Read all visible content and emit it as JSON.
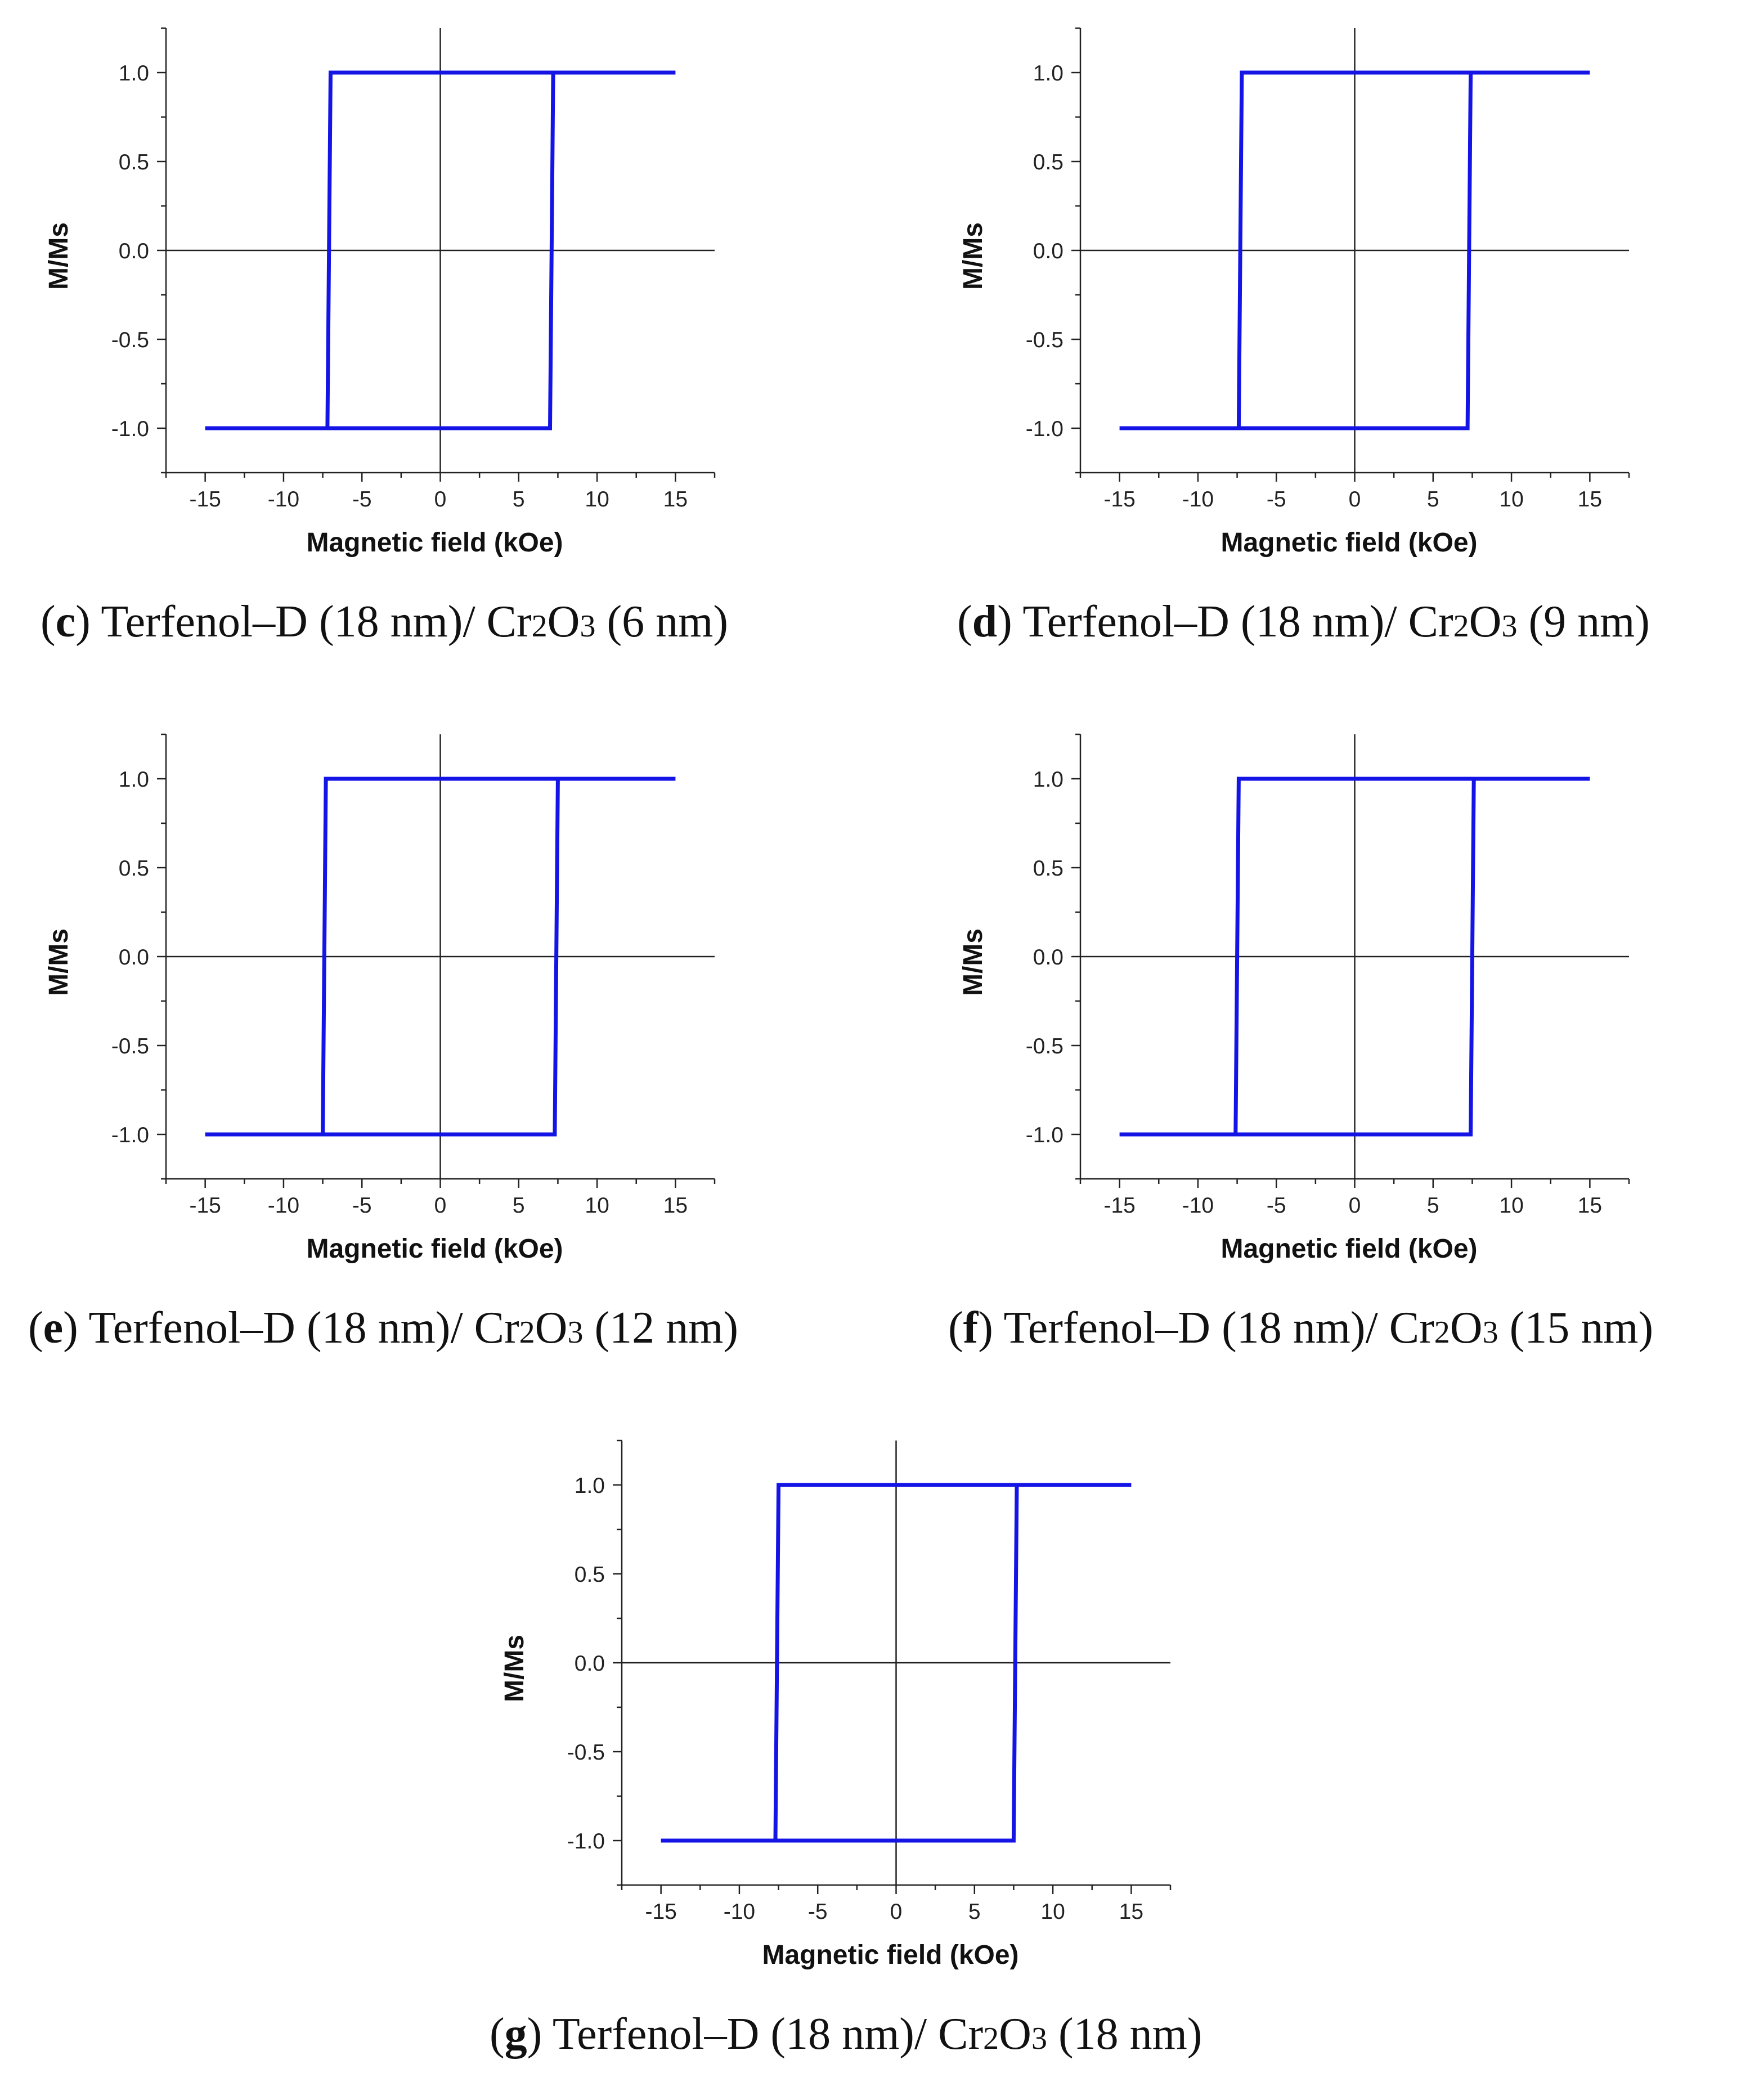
{
  "chart_data": [
    {
      "type": "line",
      "panel_letter": "c",
      "caption": {
        "prefix": "Terfenol–D (18 nm)/ ",
        "cr": "Cr",
        "sub1": "2",
        "o": "O",
        "sub2": "3",
        "suffix": " (6 nm)"
      },
      "xlabel": "Magnetic field (kOe)",
      "ylabel": "M/Ms",
      "xlim": [
        -17.5,
        17.5
      ],
      "ylim": [
        -1.25,
        1.25
      ],
      "xticks": [
        "-15",
        "-10",
        "-5",
        "0",
        "5",
        "10",
        "15"
      ],
      "yticks": [
        "1.0",
        "0.5",
        "0.0",
        "-0.5",
        "-1.0"
      ],
      "color": "#1414e6",
      "series": [
        {
          "name": "hysteresis loop",
          "x": [
            -15,
            -7.2,
            -7.0,
            15,
            7.2,
            7.0,
            -15
          ],
          "y": [
            -1,
            -1,
            1,
            1,
            1,
            -1,
            -1
          ]
        }
      ]
    },
    {
      "type": "line",
      "panel_letter": "d",
      "caption": {
        "prefix": "Terfenol–D (18 nm)/ ",
        "cr": "Cr",
        "sub1": "2",
        "o": "O",
        "sub2": "3",
        "suffix": " (9 nm)"
      },
      "xlabel": "Magnetic field (kOe)",
      "ylabel": "M/Ms",
      "xlim": [
        -17.5,
        17.5
      ],
      "ylim": [
        -1.25,
        1.25
      ],
      "xticks": [
        "-15",
        "-10",
        "-5",
        "0",
        "5",
        "10",
        "15"
      ],
      "yticks": [
        "1.0",
        "0.5",
        "0.0",
        "-0.5",
        "-1.0"
      ],
      "color": "#1414e6",
      "series": [
        {
          "name": "hysteresis loop",
          "x": [
            -15,
            -7.4,
            -7.2,
            15,
            7.4,
            7.2,
            -15
          ],
          "y": [
            -1,
            -1,
            1,
            1,
            1,
            -1,
            -1
          ]
        }
      ]
    },
    {
      "type": "line",
      "panel_letter": "e",
      "caption": {
        "prefix": "Terfenol–D (18 nm)/ ",
        "cr": "Cr",
        "sub1": "2",
        "o": "O",
        "sub2": "3",
        "suffix": " (12 nm)"
      },
      "xlabel": "Magnetic field (kOe)",
      "ylabel": "M/Ms",
      "xlim": [
        -17.5,
        17.5
      ],
      "ylim": [
        -1.25,
        1.25
      ],
      "xticks": [
        "-15",
        "-10",
        "-5",
        "0",
        "5",
        "10",
        "15"
      ],
      "yticks": [
        "1.0",
        "0.5",
        "0.0",
        "-0.5",
        "-1.0"
      ],
      "color": "#1414e6",
      "series": [
        {
          "name": "hysteresis loop",
          "x": [
            -15,
            -7.5,
            -7.3,
            15,
            7.5,
            7.3,
            -15
          ],
          "y": [
            -1,
            -1,
            1,
            1,
            1,
            -1,
            -1
          ]
        }
      ]
    },
    {
      "type": "line",
      "panel_letter": "f",
      "caption": {
        "prefix": "Terfenol–D (18 nm)/ ",
        "cr": "Cr",
        "sub1": "2",
        "o": "O",
        "sub2": "3",
        "suffix": " (15 nm)"
      },
      "xlabel": "Magnetic field (kOe)",
      "ylabel": "M/Ms",
      "xlim": [
        -17.5,
        17.5
      ],
      "ylim": [
        -1.25,
        1.25
      ],
      "xticks": [
        "-15",
        "-10",
        "-5",
        "0",
        "5",
        "10",
        "15"
      ],
      "yticks": [
        "1.0",
        "0.5",
        "0.0",
        "-0.5",
        "-1.0"
      ],
      "color": "#1414e6",
      "series": [
        {
          "name": "hysteresis loop",
          "x": [
            -15,
            -7.6,
            -7.4,
            15,
            7.6,
            7.4,
            -15
          ],
          "y": [
            -1,
            -1,
            1,
            1,
            1,
            -1,
            -1
          ]
        }
      ]
    },
    {
      "type": "line",
      "panel_letter": "g",
      "caption": {
        "prefix": "Terfenol–D (18 nm)/ ",
        "cr": "Cr",
        "sub1": "2",
        "o": "O",
        "sub2": "3",
        "suffix": " (18 nm)"
      },
      "xlabel": "Magnetic field (kOe)",
      "ylabel": "M/Ms",
      "xlim": [
        -17.5,
        17.5
      ],
      "ylim": [
        -1.25,
        1.25
      ],
      "xticks": [
        "-15",
        "-10",
        "-5",
        "0",
        "5",
        "10",
        "15"
      ],
      "yticks": [
        "1.0",
        "0.5",
        "0.0",
        "-0.5",
        "-1.0"
      ],
      "color": "#1414e6",
      "series": [
        {
          "name": "hysteresis loop",
          "x": [
            -15,
            -7.7,
            -7.5,
            15,
            7.7,
            7.5,
            -15
          ],
          "y": [
            -1,
            -1,
            1,
            1,
            1,
            -1,
            -1
          ]
        }
      ]
    }
  ]
}
